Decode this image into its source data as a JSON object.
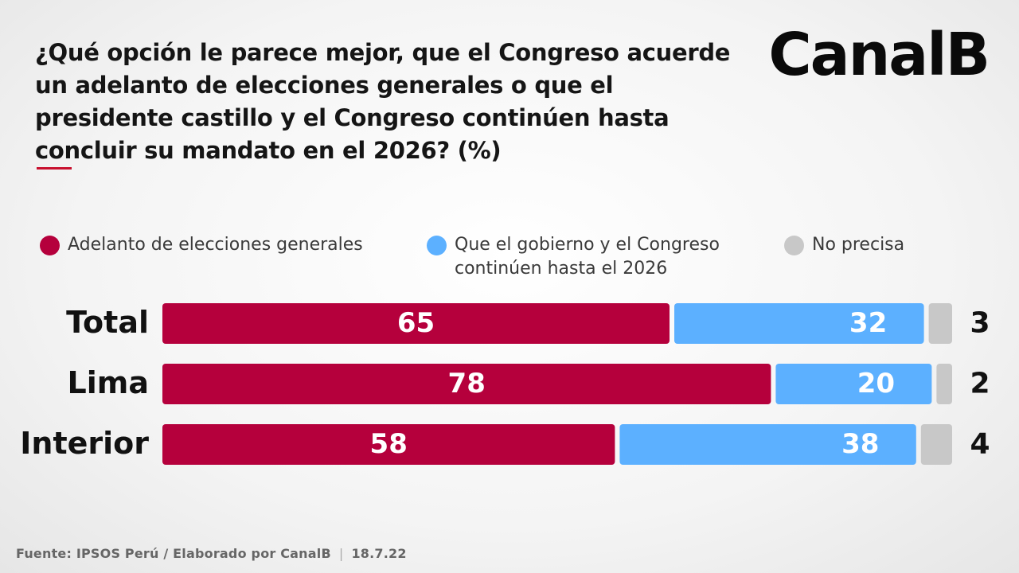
{
  "logo": "CanalB",
  "footer": {
    "source": "Fuente: IPSOS Perú / Elaborado por CanalB",
    "date": "18.7.22"
  },
  "chart_data": {
    "type": "bar",
    "orientation": "horizontal",
    "stacked": true,
    "title": "¿Qué opción le parece mejor, que el Congreso acuerde un adelanto de elecciones generales o que el presidente castillo y el Congreso continúen hasta concluir su mandato en el 2026? (%)",
    "categories": [
      "Total",
      "Lima",
      "Interior"
    ],
    "series": [
      {
        "name": "Adelanto de elecciones generales",
        "color": "#b5003c",
        "values": [
          65,
          78,
          58
        ]
      },
      {
        "name": "Que el gobierno y el Congreso continúen hasta el 2026",
        "color": "#5cb0ff",
        "values": [
          32,
          20,
          38
        ]
      },
      {
        "name": "No precisa",
        "color": "#c8c8c8",
        "values": [
          3,
          2,
          4
        ]
      }
    ],
    "legend": "top",
    "grid": false
  }
}
